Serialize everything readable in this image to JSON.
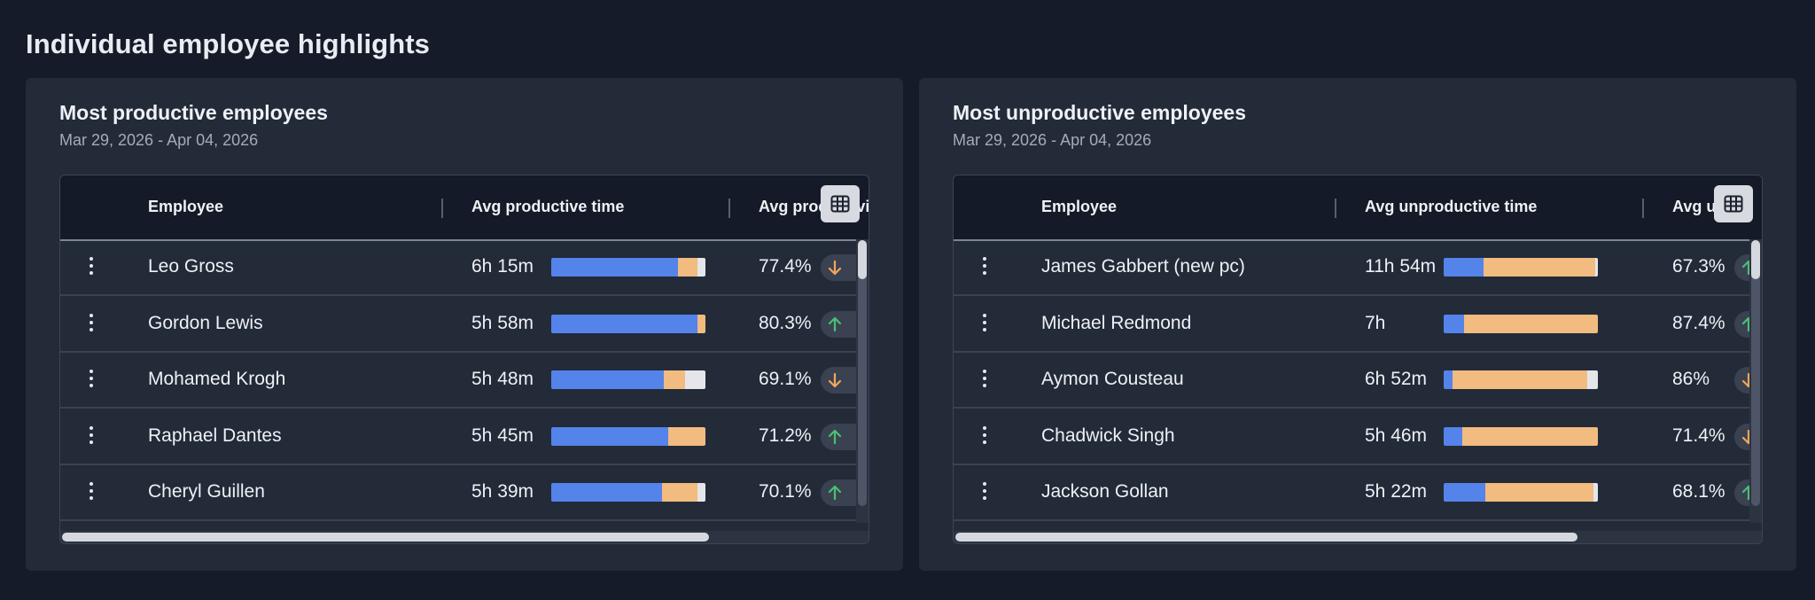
{
  "section_title": "Individual employee highlights",
  "colors": {
    "productive": "#5483ea",
    "unproductive": "#f2bb80",
    "neutral": "#e4e6ea",
    "up": "#4bbf73",
    "down": "#f2a65a"
  },
  "panels": [
    {
      "title": "Most productive employees",
      "date_range": "Mar 29, 2026 - Apr 04, 2026",
      "columns": [
        "Employee",
        "Avg productive time",
        "Avg productivi"
      ],
      "grid_icon": "table-grid-icon",
      "rows": [
        {
          "name": "Leo Gross",
          "time": "6h 15m",
          "bar": [
            0.82,
            0.13,
            0.05
          ],
          "pct": "77.4%",
          "trend": "down"
        },
        {
          "name": "Gordon Lewis",
          "time": "5h 58m",
          "bar": [
            0.95,
            0.05,
            0.0
          ],
          "pct": "80.3%",
          "trend": "up"
        },
        {
          "name": "Mohamed Krogh",
          "time": "5h 48m",
          "bar": [
            0.73,
            0.14,
            0.13
          ],
          "pct": "69.1%",
          "trend": "down"
        },
        {
          "name": "Raphael Dantes",
          "time": "5h 45m",
          "bar": [
            0.76,
            0.24,
            0.0
          ],
          "pct": "71.2%",
          "trend": "up"
        },
        {
          "name": "Cheryl Guillen",
          "time": "5h 39m",
          "bar": [
            0.72,
            0.23,
            0.05
          ],
          "pct": "70.1%",
          "trend": "up"
        }
      ],
      "hscroll_fraction": 0.8
    },
    {
      "title": "Most unproductive employees",
      "date_range": "Mar 29, 2026 - Apr 04, 2026",
      "columns": [
        "Employee",
        "Avg unproductive time",
        "Avg u"
      ],
      "grid_icon": "table-grid-icon",
      "rows": [
        {
          "name": "James Gabbert (new pc)",
          "time": "11h 54m",
          "bar": [
            0.26,
            0.72,
            0.02
          ],
          "pct": "67.3%",
          "trend": "up"
        },
        {
          "name": "Michael Redmond",
          "time": "7h",
          "bar": [
            0.13,
            0.87,
            0.0
          ],
          "pct": "87.4%",
          "trend": "up"
        },
        {
          "name": "Aymon Cousteau",
          "time": "6h 52m",
          "bar": [
            0.06,
            0.87,
            0.07
          ],
          "pct": "86%",
          "trend": "down"
        },
        {
          "name": "Chadwick Singh",
          "time": "5h 46m",
          "bar": [
            0.12,
            0.88,
            0.0
          ],
          "pct": "71.4%",
          "trend": "down"
        },
        {
          "name": "Jackson Gollan",
          "time": "5h 22m",
          "bar": [
            0.27,
            0.7,
            0.03
          ],
          "pct": "68.1%",
          "trend": "up"
        }
      ],
      "hscroll_fraction": 0.77
    }
  ]
}
